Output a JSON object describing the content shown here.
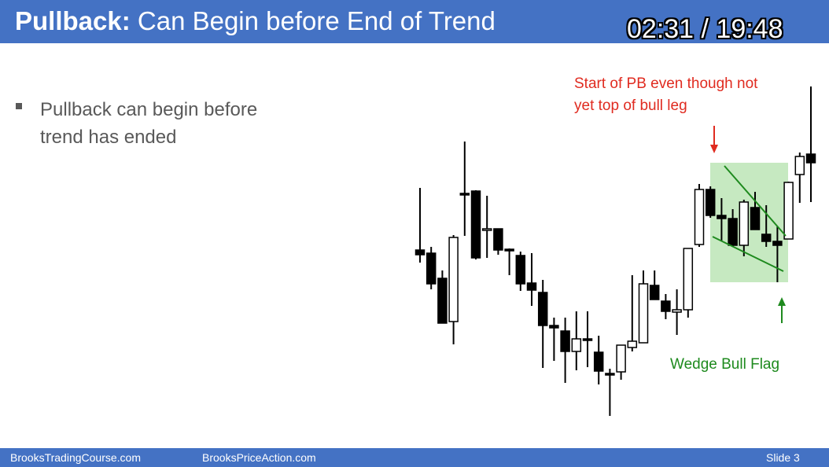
{
  "header": {
    "title_bold": "Pullback:",
    "title_rest": " Can Begin before End of Trend",
    "timer": "02:31 / 19:48"
  },
  "content": {
    "bullets": [
      "Pullback can begin before trend has ended"
    ]
  },
  "annotations": {
    "start_pb": "Start of PB even though not yet top of bull leg",
    "wedge_bull_flag": "Wedge Bull Flag"
  },
  "colors": {
    "accent": "#4472c4",
    "annotation_red": "#e02b20",
    "annotation_green": "#1e8a1e",
    "highlight": "#c6e9c1"
  },
  "footer": {
    "left": "BrooksTradingCourse.com",
    "center": "BrooksPriceAction.com",
    "right": "Slide  3"
  },
  "chart_data": {
    "type": "candlestick",
    "y_units": "screen-relative price (higher = up)",
    "bars": [
      {
        "o": 276,
        "h": 355,
        "l": 260,
        "c": 270
      },
      {
        "o": 272,
        "h": 280,
        "l": 226,
        "c": 233
      },
      {
        "o": 240,
        "h": 250,
        "l": 183,
        "c": 183
      },
      {
        "o": 185,
        "h": 295,
        "l": 156,
        "c": 292
      },
      {
        "o": 348,
        "h": 414,
        "l": 294,
        "c": 347
      },
      {
        "o": 351,
        "h": 352,
        "l": 264,
        "c": 266
      },
      {
        "o": 302,
        "h": 345,
        "l": 266,
        "c": 303
      },
      {
        "o": 303,
        "h": 303,
        "l": 270,
        "c": 276
      },
      {
        "o": 277,
        "h": 278,
        "l": 244,
        "c": 276
      },
      {
        "o": 269,
        "h": 274,
        "l": 224,
        "c": 233
      },
      {
        "o": 234,
        "h": 272,
        "l": 205,
        "c": 225
      },
      {
        "o": 222,
        "h": 238,
        "l": 126,
        "c": 180
      },
      {
        "o": 180,
        "h": 190,
        "l": 135,
        "c": 177
      },
      {
        "o": 173,
        "h": 190,
        "l": 107,
        "c": 147
      },
      {
        "o": 147,
        "h": 198,
        "l": 123,
        "c": 163
      },
      {
        "o": 163,
        "h": 198,
        "l": 127,
        "c": 162
      },
      {
        "o": 146,
        "h": 167,
        "l": 105,
        "c": 122
      },
      {
        "o": 119,
        "h": 125,
        "l": 65,
        "c": 118
      },
      {
        "o": 121,
        "h": 155,
        "l": 111,
        "c": 155
      },
      {
        "o": 152,
        "h": 244,
        "l": 147,
        "c": 160
      },
      {
        "o": 158,
        "h": 250,
        "l": 160,
        "c": 233
      },
      {
        "o": 231,
        "h": 250,
        "l": 220,
        "c": 213
      },
      {
        "o": 211,
        "h": 220,
        "l": 188,
        "c": 198
      },
      {
        "o": 197,
        "h": 226,
        "l": 168,
        "c": 200
      },
      {
        "o": 200,
        "h": 278,
        "l": 190,
        "c": 278
      },
      {
        "o": 283,
        "h": 360,
        "l": 280,
        "c": 353
      },
      {
        "o": 353,
        "h": 357,
        "l": 317,
        "c": 320
      },
      {
        "o": 320,
        "h": 342,
        "l": 288,
        "c": 316
      },
      {
        "o": 316,
        "h": 328,
        "l": 280,
        "c": 282
      },
      {
        "o": 282,
        "h": 340,
        "l": 268,
        "c": 337
      },
      {
        "o": 330,
        "h": 350,
        "l": 302,
        "c": 302
      },
      {
        "o": 296,
        "h": 333,
        "l": 280,
        "c": 287
      },
      {
        "o": 287,
        "h": 306,
        "l": 235,
        "c": 282
      },
      {
        "o": 290,
        "h": 363,
        "l": 290,
        "c": 362
      },
      {
        "o": 372,
        "h": 400,
        "l": 336,
        "c": 395
      },
      {
        "o": 398,
        "h": 484,
        "l": 337,
        "c": 387
      }
    ]
  }
}
